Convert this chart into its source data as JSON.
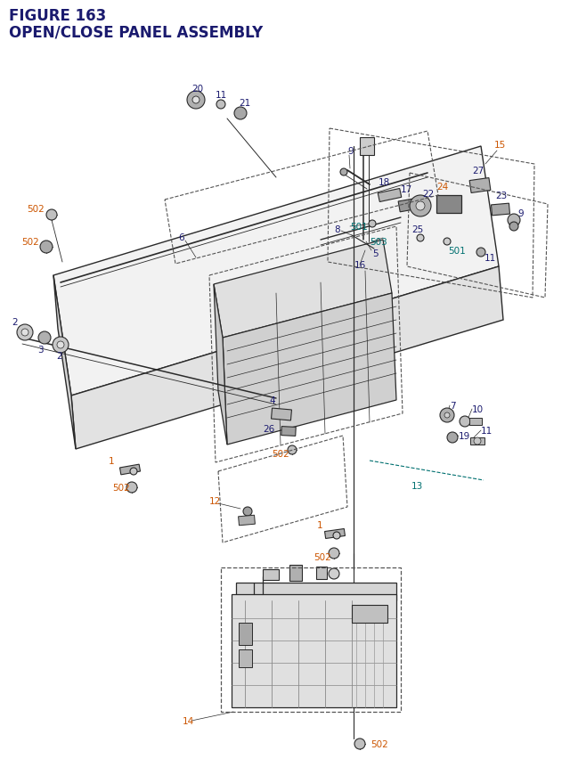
{
  "title_line1": "FIGURE 163",
  "title_line2": "OPEN/CLOSE PANEL ASSEMBLY",
  "title_color": "#1a1a6e",
  "bg_color": "#ffffff",
  "line_color": "#2a2a2a",
  "dash_color": "#555555",
  "part_blue": "#1a1a6e",
  "part_orange": "#cc5500",
  "part_teal": "#007070"
}
